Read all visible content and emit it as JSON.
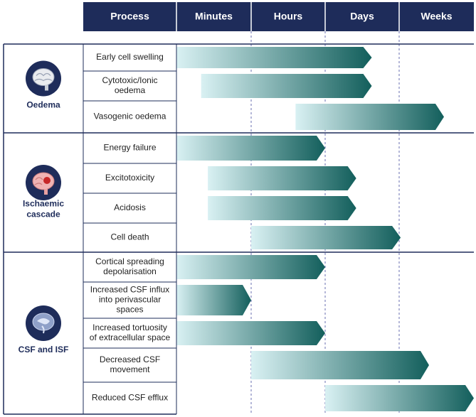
{
  "colors": {
    "header_bg": "#1e2c5a",
    "border": "#1e2c5a",
    "divider": "#6a6fb0",
    "bar_light": "#d9f1f3",
    "bar_dark": "#135f5c",
    "icon_bg": "#1e2c5a"
  },
  "header": {
    "process": "Process",
    "columns": [
      "Minutes",
      "Hours",
      "Days",
      "Weeks"
    ]
  },
  "groups": [
    {
      "label_lines": [
        "Oedema"
      ],
      "icon": "brain-icon",
      "rows": [
        {
          "lines": [
            "Early cell swelling"
          ],
          "start": 0.0,
          "end": 2.63
        },
        {
          "lines": [
            "Cytotoxic/Ionic",
            "oedema"
          ],
          "start": 0.33,
          "end": 2.63
        },
        {
          "lines": [
            "Vasogenic oedema"
          ],
          "start": 1.6,
          "end": 3.6
        }
      ]
    },
    {
      "label_lines": [
        "Ischaemic",
        "cascade"
      ],
      "icon": "ischaemic-brain-icon",
      "rows": [
        {
          "lines": [
            "Energy failure"
          ],
          "start": 0.0,
          "end": 2.0
        },
        {
          "lines": [
            "Excitotoxicity"
          ],
          "start": 0.42,
          "end": 2.42
        },
        {
          "lines": [
            "Acidosis"
          ],
          "start": 0.42,
          "end": 2.42
        },
        {
          "lines": [
            "Cell death"
          ],
          "start": 1.0,
          "end": 3.02
        }
      ]
    },
    {
      "label_lines": [
        "CSF and ISF"
      ],
      "icon": "csf-brain-section-icon",
      "rows": [
        {
          "lines": [
            "Cortical spreading",
            "depolarisation"
          ],
          "start": 0.0,
          "end": 2.0
        },
        {
          "lines": [
            "Increased CSF influx",
            "into perivascular",
            "spaces"
          ],
          "start": 0.0,
          "end": 1.0
        },
        {
          "lines": [
            "Increased tortuosity",
            "of extracellular space"
          ],
          "start": 0.0,
          "end": 2.0
        },
        {
          "lines": [
            "Decreased CSF",
            "movement"
          ],
          "start": 1.0,
          "end": 3.4
        },
        {
          "lines": [
            "Reduced CSF efflux"
          ],
          "start": 2.0,
          "end": 4.0
        }
      ]
    }
  ]
}
